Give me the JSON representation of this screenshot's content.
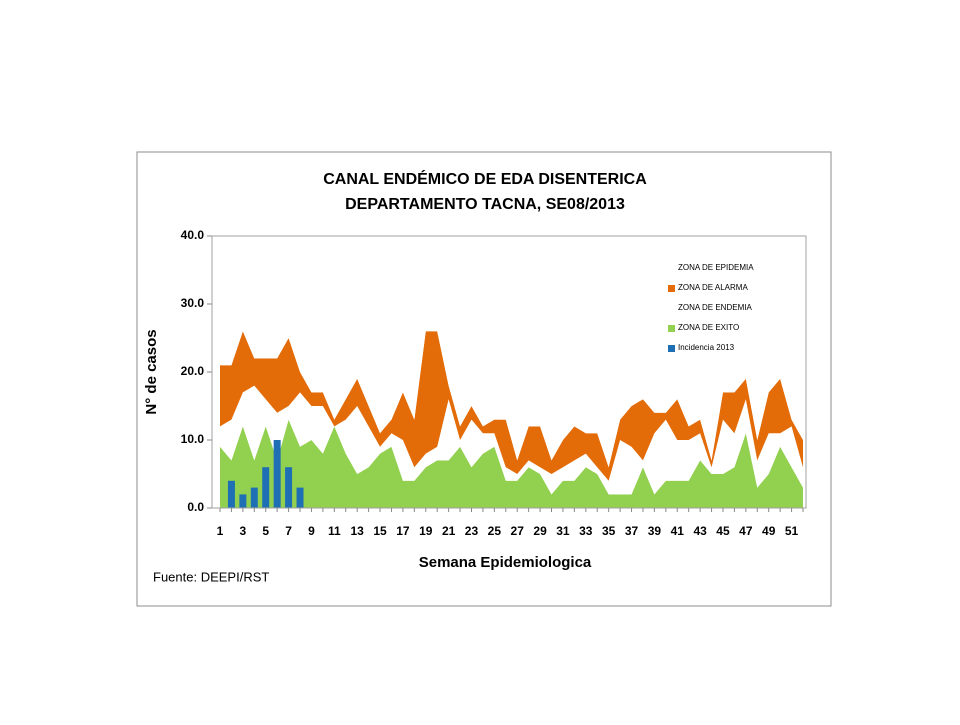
{
  "chart_data": {
    "type": "area",
    "title": "CANAL ENDÉMICO DE EDA DISENTERICA",
    "subtitle": "DEPARTAMENTO TACNA,  SE08/2013",
    "x_label": "Semana Epidemiologica",
    "y_label": "N° de casos",
    "source": "Fuente: DEEPI/RST",
    "categories": [
      1,
      null,
      3,
      null,
      5,
      null,
      7,
      null,
      9,
      null,
      11,
      null,
      13,
      null,
      15,
      null,
      17,
      null,
      19,
      null,
      21,
      null,
      23,
      null,
      25,
      null,
      27,
      null,
      29,
      null,
      31,
      null,
      33,
      null,
      35,
      null,
      37,
      null,
      39,
      null,
      41,
      null,
      43,
      null,
      45,
      null,
      47,
      null,
      49,
      null,
      51,
      null
    ],
    "ylim": [
      0,
      40
    ],
    "yticks": [
      {
        "value": 0,
        "label": "0.0"
      },
      {
        "value": 10,
        "label": "10.0"
      },
      {
        "value": 20,
        "label": "20.0"
      },
      {
        "value": 30,
        "label": "30.0"
      },
      {
        "value": 40,
        "label": "40.0"
      }
    ],
    "legend": "right",
    "series": [
      {
        "name": "ZONA DE EXITO",
        "color": "#92d050",
        "stack": true,
        "values": [
          9,
          7,
          12,
          7,
          12,
          7,
          13,
          9,
          10,
          8,
          12,
          8,
          5,
          6,
          8,
          9,
          4,
          4,
          6,
          7,
          7,
          9,
          6,
          8,
          9,
          4,
          4,
          6,
          5,
          2,
          4,
          4,
          6,
          5,
          2,
          2,
          2,
          6,
          2,
          4,
          4,
          4,
          7,
          5,
          5,
          6,
          11,
          3,
          5,
          9,
          6,
          3
        ]
      },
      {
        "name": "ZONA DE ENDEMIA",
        "color": "#ffffff",
        "stack": true,
        "values": [
          3,
          6,
          5,
          11,
          4,
          7,
          2,
          8,
          5,
          7,
          0,
          5,
          10,
          6,
          1,
          2,
          6,
          2,
          2,
          2,
          9,
          1,
          7,
          3,
          2,
          2,
          1,
          1,
          1,
          3,
          2,
          3,
          2,
          1,
          2,
          8,
          7,
          1,
          9,
          9,
          6,
          6,
          4,
          1,
          8,
          5,
          5,
          4,
          6,
          2,
          6,
          3
        ]
      },
      {
        "name": "ZONA DE ALARMA",
        "color": "#e36c09",
        "stack": true,
        "values": [
          9,
          8,
          9,
          4,
          6,
          8,
          10,
          3,
          2,
          2,
          1,
          3,
          4,
          3,
          2,
          2,
          7,
          7,
          18,
          17,
          2,
          2,
          2,
          1,
          2,
          7,
          2,
          5,
          6,
          2,
          4,
          5,
          3,
          5,
          2,
          3,
          6,
          9,
          3,
          1,
          6,
          2,
          2,
          1,
          4,
          6,
          3,
          3,
          6,
          8,
          1,
          4
        ]
      },
      {
        "name": "ZONA DE EPIDEMIA",
        "color": "#ffffff",
        "stack": true,
        "values": [
          19,
          19,
          14,
          18,
          18,
          18,
          15,
          20,
          23,
          23,
          27,
          24,
          21,
          25,
          29,
          27,
          23,
          27,
          14,
          14,
          22,
          28,
          25,
          28,
          27,
          27,
          33,
          28,
          28,
          33,
          30,
          28,
          29,
          29,
          34,
          27,
          25,
          24,
          26,
          26,
          24,
          28,
          27,
          33,
          23,
          23,
          21,
          30,
          23,
          21,
          27,
          30
        ]
      },
      {
        "name": "Incidencia 2013",
        "color": "#1f6fb5",
        "type": "bar",
        "values": [
          null,
          4,
          2,
          3,
          6,
          10,
          6,
          3,
          null,
          null,
          null,
          null,
          null,
          null,
          null,
          null,
          null,
          null,
          null,
          null,
          null,
          null,
          null,
          null,
          null,
          null,
          null,
          null,
          null,
          null,
          null,
          null,
          null,
          null,
          null,
          null,
          null,
          null,
          null,
          null,
          null,
          null,
          null,
          null,
          null,
          null,
          null,
          null,
          null,
          null,
          null,
          null
        ]
      }
    ]
  }
}
